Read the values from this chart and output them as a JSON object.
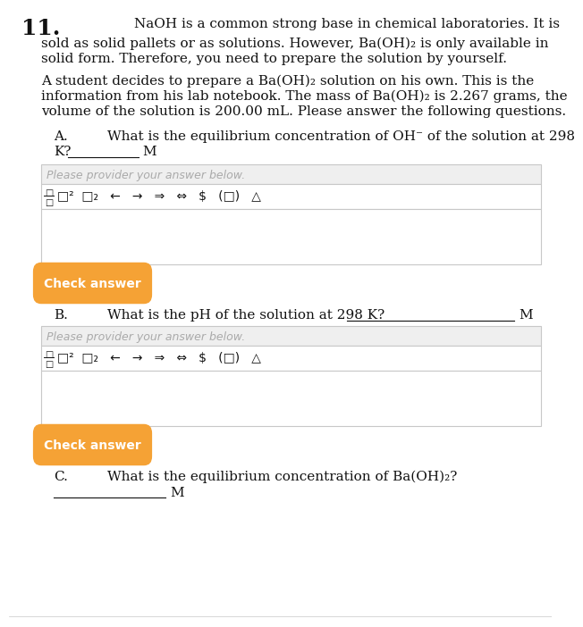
{
  "bg_color": "#ffffff",
  "gray_box_color": "#efefef",
  "orange_btn_color": "#f5a235",
  "border_color": "#c8c8c8",
  "black": "#111111",
  "dark_navy": "#1a1a5e",
  "number": "11.",
  "intro_line1": "NaOH is a common strong base in chemical laboratories. It is",
  "intro_line2": "sold as solid pallets or as solutions. However, Ba(OH)₂ is only available in",
  "intro_line3": "solid form. Therefore, you need to prepare the solution by yourself.",
  "para_line1": "A student decides to prepare a Ba(OH)₂ solution on his own. This is the",
  "para_line2": "information from his lab notebook. The mass of Ba(OH)₂ is 2.267 grams, the",
  "para_line3": "volume of the solution is 200.00 mL. Please answer the following questions.",
  "q_a_label": "A.",
  "q_a_text": "What is the equilibrium concentration of OH⁻ of the solution at 298",
  "q_a_cont": "K?",
  "q_a_unit": "M",
  "q_b_label": "B.",
  "q_b_text": "What is the pH of the solution at 298 K?",
  "q_b_unit": "M",
  "q_c_label": "C.",
  "q_c_text": "What is the equilibrium concentration of Ba(OH)₂?",
  "q_c_unit": "M",
  "placeholder_text": "Please provider your answer below.",
  "btn_text": "Check answer",
  "toolbar_text": "□²  □₂   ←   →   ⇒   ⇔   $   (□)   △",
  "font_size_number": 18,
  "font_size_body": 11,
  "font_size_toolbar": 10,
  "font_size_btn": 10,
  "font_size_placeholder": 9
}
